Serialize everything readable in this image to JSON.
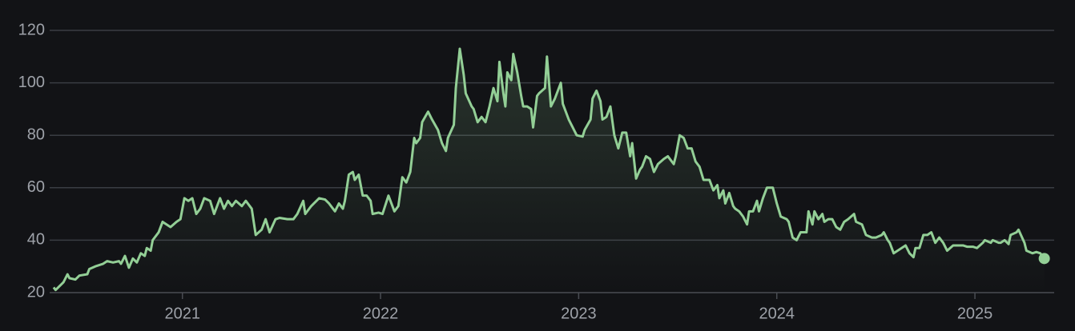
{
  "chart_data": {
    "type": "line",
    "color": "#93cf96",
    "grid": true,
    "fill_area": true,
    "xlim": [
      2020.33,
      2025.4
    ],
    "xticks": [
      2021,
      2022,
      2023,
      2024,
      2025
    ],
    "ylim": [
      20,
      120
    ],
    "yticks": [
      20,
      40,
      60,
      80,
      100,
      120
    ],
    "x": [
      2020.35,
      2020.36,
      2020.4,
      2020.42,
      2020.43,
      2020.46,
      2020.48,
      2020.52,
      2020.53,
      2020.56,
      2020.6,
      2020.62,
      2020.65,
      2020.68,
      2020.69,
      2020.71,
      2020.73,
      2020.75,
      2020.77,
      2020.79,
      2020.81,
      2020.82,
      2020.84,
      2020.85,
      2020.88,
      2020.9,
      2020.94,
      2020.97,
      2020.99,
      2021.01,
      2021.03,
      2021.05,
      2021.07,
      2021.09,
      2021.11,
      2021.14,
      2021.16,
      2021.19,
      2021.21,
      2021.23,
      2021.25,
      2021.27,
      2021.3,
      2021.32,
      2021.35,
      2021.37,
      2021.4,
      2021.42,
      2021.44,
      2021.47,
      2021.49,
      2021.53,
      2021.56,
      2021.58,
      2021.61,
      2021.62,
      2021.65,
      2021.69,
      2021.72,
      2021.74,
      2021.77,
      2021.79,
      2021.81,
      2021.82,
      2021.84,
      2021.86,
      2021.87,
      2021.89,
      2021.91,
      2021.93,
      2021.95,
      2021.96,
      2021.99,
      2022.01,
      2022.04,
      2022.05,
      2022.07,
      2022.09,
      2022.11,
      2022.13,
      2022.15,
      2022.17,
      2022.18,
      2022.2,
      2022.21,
      2022.24,
      2022.26,
      2022.29,
      2022.31,
      2022.33,
      2022.34,
      2022.37,
      2022.38,
      2022.4,
      2022.42,
      2022.43,
      2022.46,
      2022.47,
      2022.49,
      2022.51,
      2022.53,
      2022.55,
      2022.57,
      2022.59,
      2022.6,
      2022.62,
      2022.63,
      2022.64,
      2022.66,
      2022.67,
      2022.69,
      2022.71,
      2022.72,
      2022.74,
      2022.76,
      2022.77,
      2022.79,
      2022.8,
      2022.83,
      2022.84,
      2022.86,
      2022.88,
      2022.91,
      2022.92,
      2022.95,
      2022.97,
      2022.99,
      2023.02,
      2023.03,
      2023.06,
      2023.07,
      2023.09,
      2023.11,
      2023.12,
      2023.14,
      2023.16,
      2023.18,
      2023.2,
      2023.22,
      2023.24,
      2023.26,
      2023.27,
      2023.29,
      2023.31,
      2023.32,
      2023.34,
      2023.36,
      2023.38,
      2023.4,
      2023.43,
      2023.45,
      2023.48,
      2023.49,
      2023.51,
      2023.53,
      2023.55,
      2023.57,
      2023.59,
      2023.61,
      2023.63,
      2023.66,
      2023.68,
      2023.7,
      2023.71,
      2023.73,
      2023.74,
      2023.76,
      2023.78,
      2023.79,
      2023.81,
      2023.83,
      2023.85,
      2023.86,
      2023.88,
      2023.9,
      2023.91,
      2023.93,
      2023.95,
      2023.98,
      2024.0,
      2024.02,
      2024.05,
      2024.06,
      2024.08,
      2024.1,
      2024.12,
      2024.15,
      2024.16,
      2024.18,
      2024.19,
      2024.21,
      2024.23,
      2024.24,
      2024.26,
      2024.28,
      2024.3,
      2024.32,
      2024.34,
      2024.36,
      2024.39,
      2024.4,
      2024.43,
      2024.45,
      2024.48,
      2024.5,
      2024.53,
      2024.54,
      2024.56,
      2024.57,
      2024.59,
      2024.61,
      2024.63,
      2024.65,
      2024.67,
      2024.69,
      2024.7,
      2024.72,
      2024.74,
      2024.76,
      2024.78,
      2024.8,
      2024.82,
      2024.84,
      2024.86,
      2024.89,
      2024.91,
      2024.94,
      2024.96,
      2024.99,
      2025.01,
      2025.04,
      2025.05,
      2025.08,
      2025.09,
      2025.12,
      2025.13,
      2025.15,
      2025.17,
      2025.18,
      2025.21,
      2025.22,
      2025.25,
      2025.26,
      2025.29,
      2025.31,
      2025.33,
      2025.35
    ],
    "values": [
      22,
      21,
      24,
      27,
      25.5,
      25,
      26.5,
      27,
      29,
      30,
      31,
      32,
      31.5,
      32,
      31,
      34,
      29.5,
      33,
      31.5,
      35,
      34,
      37,
      36,
      40,
      43,
      47,
      45,
      47,
      48,
      56,
      55,
      56,
      50,
      52,
      56,
      55,
      50,
      56,
      52,
      55,
      53,
      55,
      53,
      55,
      52,
      42,
      44,
      48,
      43,
      48,
      48.5,
      48,
      48,
      50,
      55,
      50,
      53,
      56,
      55.5,
      54,
      51,
      54,
      52,
      55,
      65,
      66,
      63,
      65,
      57,
      57,
      55,
      50,
      50.5,
      50,
      57,
      55,
      51,
      53,
      64,
      62,
      66,
      79,
      77,
      79,
      85,
      89,
      86,
      82,
      77,
      74,
      79,
      84,
      98,
      113,
      103,
      96,
      91,
      90,
      85,
      87,
      85,
      91,
      98,
      93,
      108,
      96,
      91,
      104,
      101,
      111,
      104,
      95,
      91,
      91,
      90,
      83,
      95,
      96,
      98,
      110,
      91,
      94,
      100,
      92,
      86,
      83,
      80,
      79.5,
      82,
      86,
      94,
      97,
      93,
      86,
      87,
      91,
      80,
      75,
      81,
      81,
      72,
      77,
      63.5,
      67,
      68,
      72,
      71,
      66,
      69,
      71,
      72,
      69,
      72,
      80,
      79,
      75,
      75,
      70,
      68,
      63,
      63,
      59,
      61,
      56,
      59,
      54,
      58,
      53,
      52,
      51,
      49,
      46,
      51,
      51,
      55,
      51,
      56,
      60,
      60,
      54,
      49,
      48,
      47,
      41,
      40,
      43,
      43,
      51,
      46,
      51,
      48,
      50,
      47,
      48,
      48,
      45,
      44,
      47,
      48,
      50,
      47,
      46,
      42,
      41,
      41,
      42,
      43,
      40,
      39,
      35,
      36,
      37,
      38,
      35,
      33.5,
      37,
      37,
      42,
      42,
      43,
      39,
      41,
      39,
      36,
      38,
      38,
      38,
      37.5,
      37.5,
      37,
      39,
      40,
      39,
      40,
      39,
      39,
      40,
      38.5,
      42,
      43,
      44,
      39,
      36,
      35,
      35.5,
      35,
      33
    ]
  }
}
